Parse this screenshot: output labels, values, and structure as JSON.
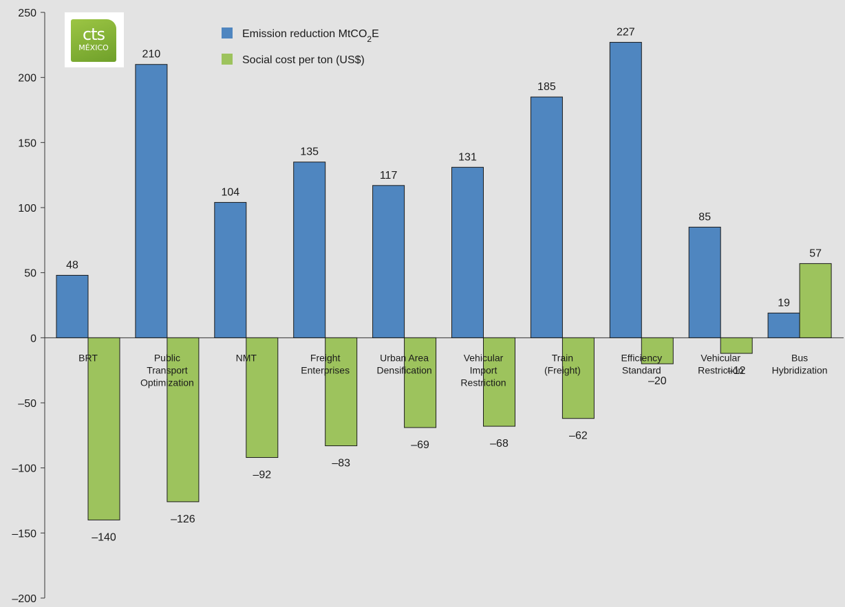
{
  "logo": {
    "text_main": "cts",
    "text_sub": "MÉXICO"
  },
  "colors": {
    "emission": "#4f86c0",
    "social_cost": "#9dc35d",
    "background": "#e3e3e3",
    "axis": "#333333"
  },
  "chart_data": {
    "type": "bar",
    "categories": [
      [
        "BRT"
      ],
      [
        "Public",
        "Transport",
        "Optimization"
      ],
      [
        "NMT"
      ],
      [
        "Freight",
        "Enterprises"
      ],
      [
        "Urban Area",
        "Densification"
      ],
      [
        "Vehicular",
        "Import",
        "Restriction"
      ],
      [
        "Train",
        "(Freight)"
      ],
      [
        "Efficiency",
        "Standard"
      ],
      [
        "Vehicular",
        "Restriction"
      ],
      [
        "Bus",
        "Hybridization"
      ]
    ],
    "series": [
      {
        "name": "Emission reduction MtCO2E",
        "color": "#4f86c0",
        "values": [
          48,
          210,
          104,
          135,
          117,
          131,
          185,
          227,
          85,
          19
        ],
        "labels": [
          "48",
          "210",
          "104",
          "135",
          "117",
          "131",
          "185",
          "227",
          "85",
          "19"
        ]
      },
      {
        "name": "Social cost per ton (US$)",
        "color": "#9dc35d",
        "values": [
          -140,
          -126,
          -92,
          -83,
          -69,
          -68,
          -62,
          -20,
          -12,
          57
        ],
        "labels": [
          "–140",
          "–126",
          "–92",
          "–83",
          "–69",
          "–68",
          "–62",
          "–20",
          "–12",
          "57"
        ]
      }
    ],
    "ylim": [
      -200,
      250
    ],
    "yticks": [
      250,
      200,
      150,
      100,
      50,
      0,
      -50,
      -100,
      -150,
      -200
    ],
    "ytick_labels": [
      "250",
      "200",
      "150",
      "100",
      "50",
      "0",
      "–50",
      "–100",
      "–150",
      "–200"
    ],
    "legend": {
      "position": "top-left",
      "items": [
        {
          "label": "Emission reduction MtCO",
          "subscript": "2",
          "suffix": "E",
          "color": "#4f86c0"
        },
        {
          "label": "Social cost per ton (US$)",
          "color": "#9dc35d"
        }
      ]
    },
    "grid": false,
    "title": "",
    "xlabel": "",
    "ylabel": ""
  }
}
